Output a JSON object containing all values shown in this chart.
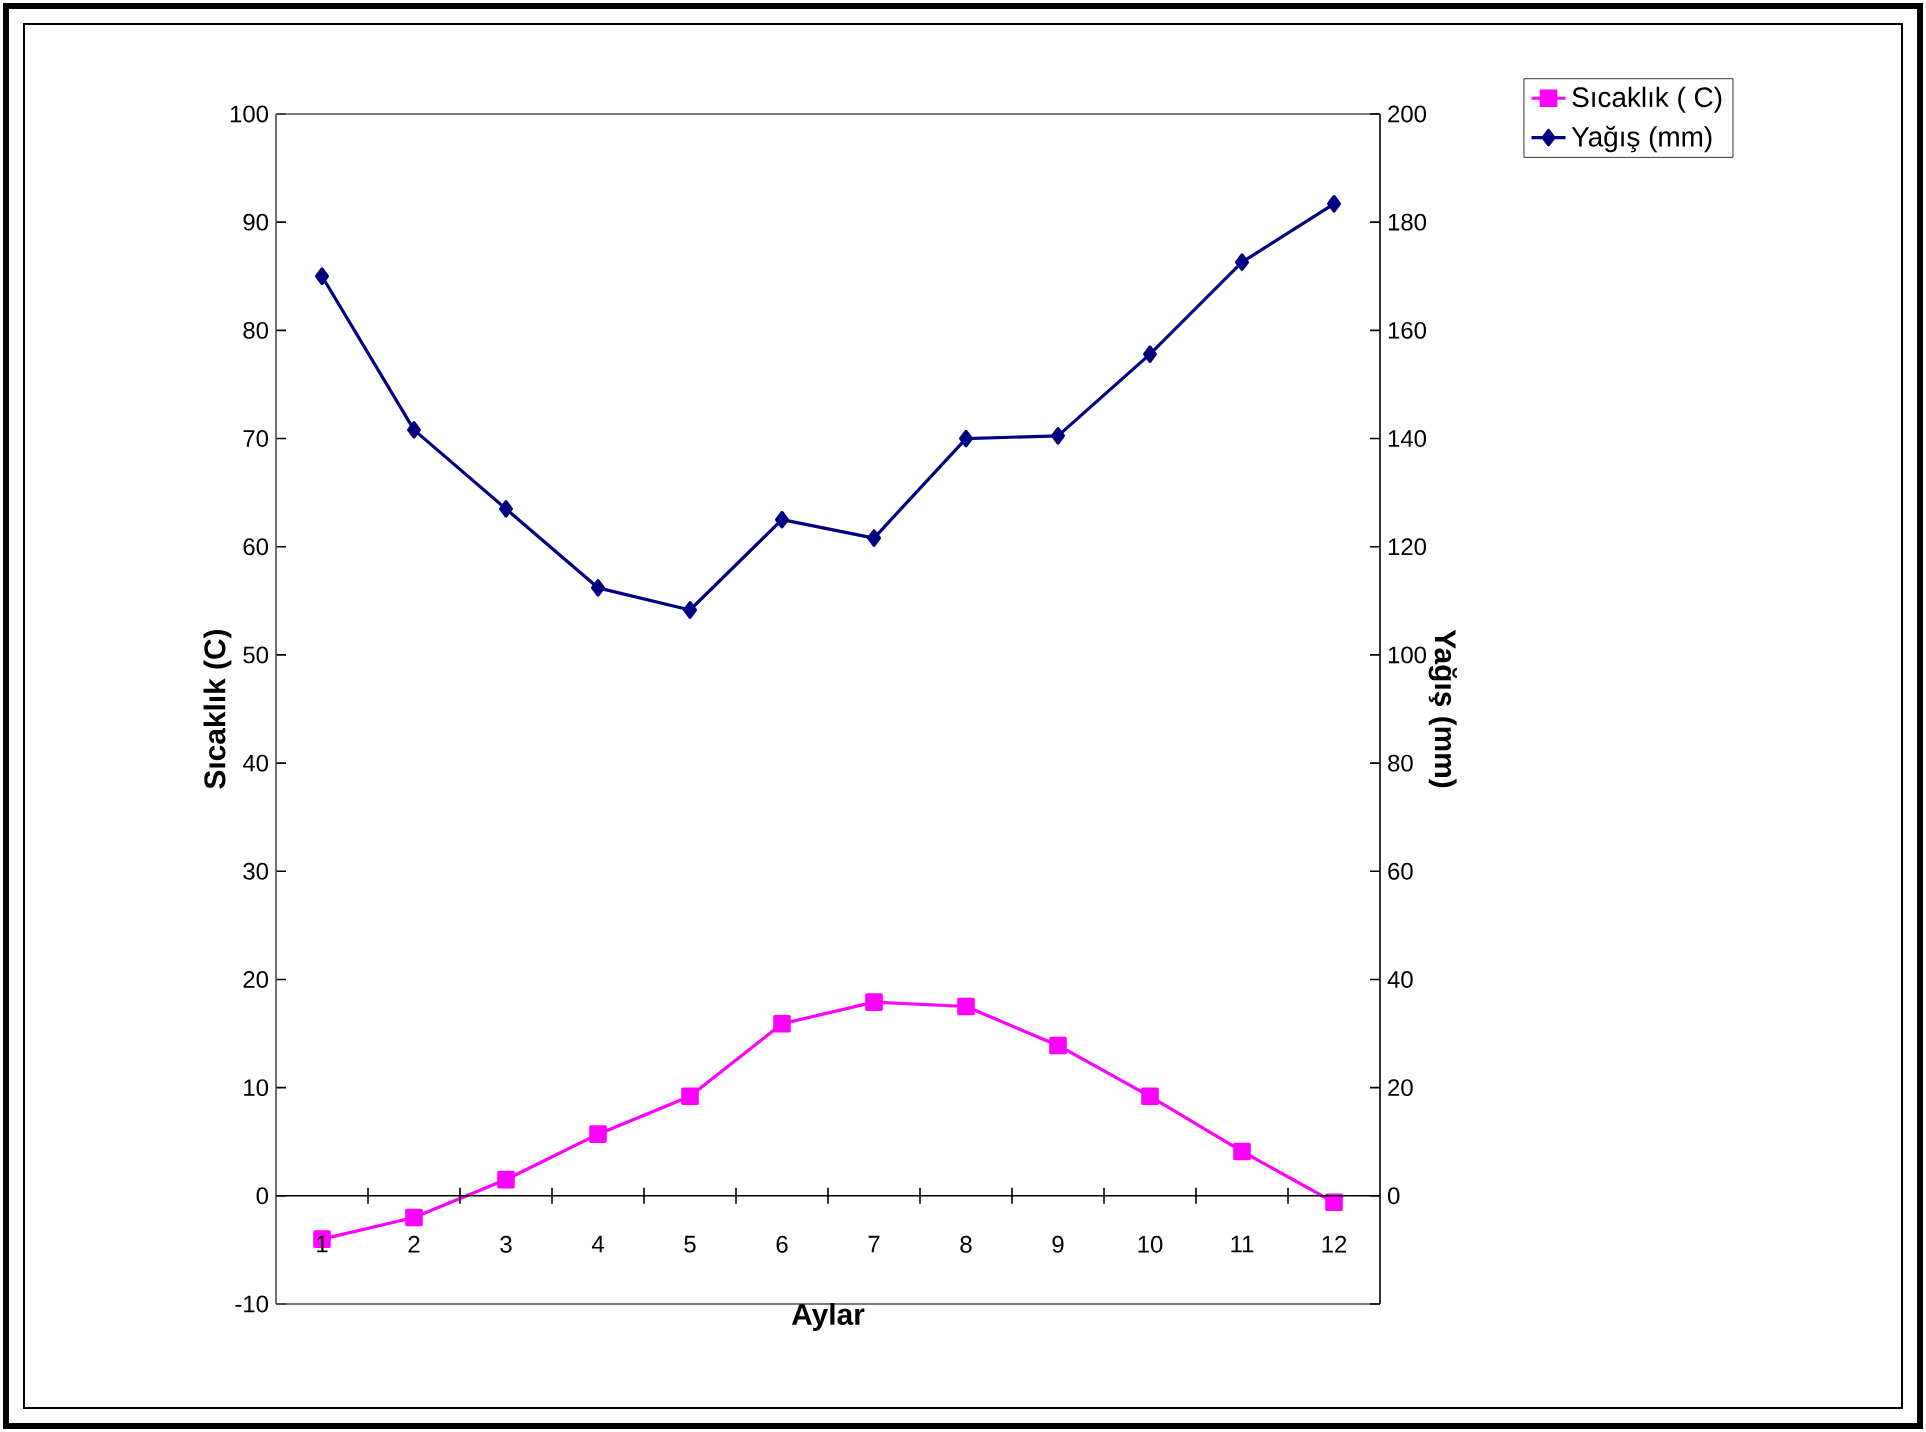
{
  "chart_data": {
    "type": "line",
    "xlabel": "Aylar",
    "ylabel": "Sıcaklık (C)",
    "y2label": "Yağış (mm)",
    "categories": [
      "1",
      "2",
      "3",
      "4",
      "5",
      "6",
      "7",
      "8",
      "9",
      "10",
      "11",
      "12"
    ],
    "series": [
      {
        "name": "Sıcaklık ( C)",
        "color": "#ff00ff",
        "marker": "square",
        "values": [
          -4.0,
          -2.0,
          1.5,
          5.7,
          9.2,
          15.9,
          17.9,
          17.5,
          13.9,
          9.2,
          4.1,
          -0.6
        ]
      },
      {
        "name": "Yağış (mm)",
        "color": "#000080",
        "marker": "diamond",
        "axis": "y2",
        "values": [
          170,
          141.6,
          127,
          112.4,
          108.3,
          125,
          121.6,
          140,
          140.5,
          155.6,
          172.6,
          183.4
        ]
      }
    ],
    "ylim": [
      -10,
      100
    ],
    "yticks": [
      -10,
      0,
      10,
      20,
      30,
      40,
      50,
      60,
      70,
      80,
      90,
      100
    ],
    "y2lim": [
      -20,
      200
    ],
    "y2ticks": [
      {
        "value": -20,
        "label": null
      },
      0,
      20,
      40,
      60,
      80,
      100,
      120,
      140,
      160,
      180,
      200
    ],
    "grid": false,
    "legend": "top right"
  }
}
